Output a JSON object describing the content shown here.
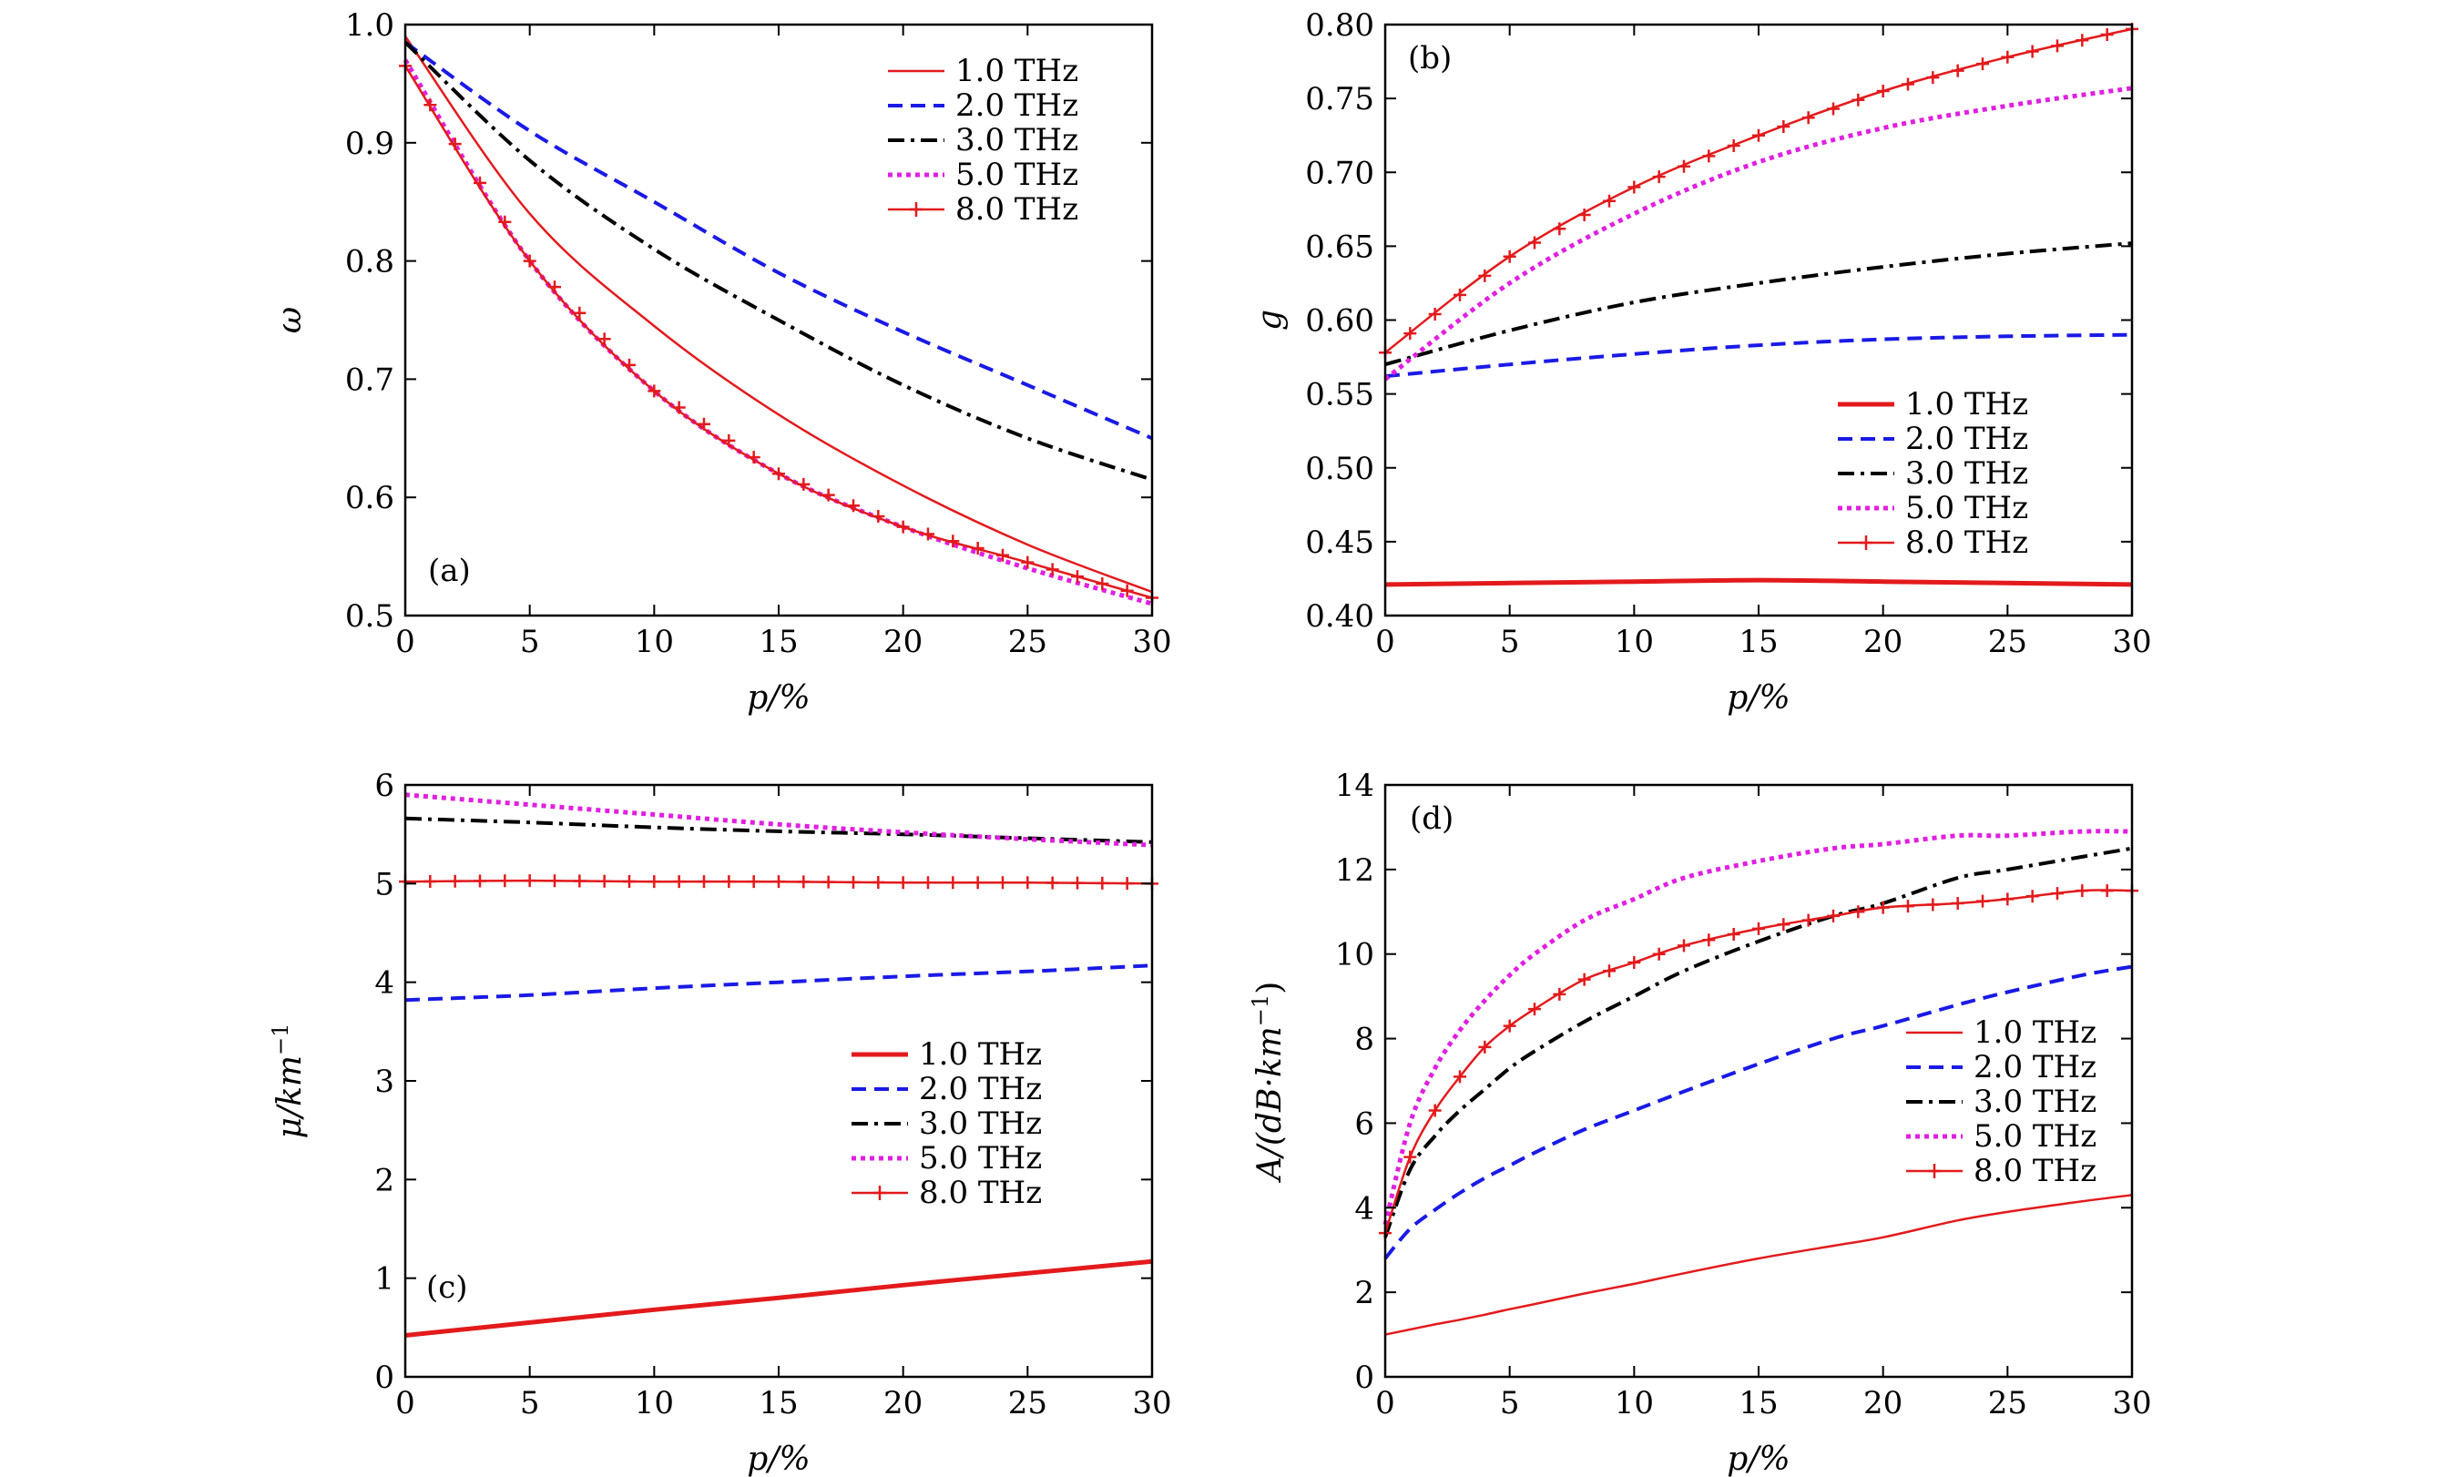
{
  "chart_data": [
    {
      "type": "line",
      "panel_label": "(a)",
      "xlabel": "p/%",
      "ylabel": "ω",
      "xlim": [
        0,
        30
      ],
      "ylim": [
        0.5,
        1.0
      ],
      "x_ticks": [
        "0",
        "5",
        "10",
        "15",
        "20",
        "25",
        "30"
      ],
      "y_ticks": [
        "0.5",
        "0.6",
        "0.7",
        "0.8",
        "0.9",
        "1.0"
      ],
      "legend_position": "top-right",
      "x": [
        0,
        5,
        10,
        15,
        20,
        25,
        30
      ],
      "series": [
        {
          "name": "1.0 THz",
          "color": "#e31a1c",
          "style": "solid",
          "values": [
            0.99,
            0.84,
            0.745,
            0.67,
            0.61,
            0.56,
            0.52
          ]
        },
        {
          "name": "2.0 THz",
          "color": "#1a1ae6",
          "style": "dashed",
          "values": [
            0.985,
            0.91,
            0.85,
            0.79,
            0.74,
            0.695,
            0.65
          ]
        },
        {
          "name": "3.0 THz",
          "color": "#000000",
          "style": "dashdot",
          "values": [
            0.985,
            0.885,
            0.81,
            0.75,
            0.695,
            0.65,
            0.615
          ]
        },
        {
          "name": "5.0 THz",
          "color": "#e020e0",
          "style": "dotted",
          "values": [
            0.97,
            0.8,
            0.69,
            0.62,
            0.575,
            0.54,
            0.51
          ]
        },
        {
          "name": "8.0 THz",
          "color": "#e31a1c",
          "style": "marker",
          "values": [
            0.965,
            0.8,
            0.69,
            0.62,
            0.575,
            0.545,
            0.515
          ]
        }
      ]
    },
    {
      "type": "line",
      "panel_label": "(b)",
      "xlabel": "p/%",
      "ylabel": "g",
      "xlim": [
        0,
        30
      ],
      "ylim": [
        0.4,
        0.8
      ],
      "x_ticks": [
        "0",
        "5",
        "10",
        "15",
        "20",
        "25",
        "30"
      ],
      "y_ticks": [
        "0.40",
        "0.45",
        "0.50",
        "0.55",
        "0.60",
        "0.65",
        "0.70",
        "0.75",
        "0.80"
      ],
      "legend_position": "bottom-right",
      "x": [
        0,
        5,
        10,
        15,
        20,
        25,
        30
      ],
      "series": [
        {
          "name": "1.0 THz",
          "color": "#e31a1c",
          "style": "thick",
          "values": [
            0.421,
            0.422,
            0.423,
            0.424,
            0.423,
            0.422,
            0.421
          ]
        },
        {
          "name": "2.0 THz",
          "color": "#1a1ae6",
          "style": "dashed",
          "values": [
            0.562,
            0.57,
            0.577,
            0.583,
            0.587,
            0.589,
            0.59
          ]
        },
        {
          "name": "3.0 THz",
          "color": "#000000",
          "style": "dashdot",
          "values": [
            0.57,
            0.593,
            0.612,
            0.625,
            0.636,
            0.645,
            0.652
          ]
        },
        {
          "name": "5.0 THz",
          "color": "#e020e0",
          "style": "dotted",
          "values": [
            0.56,
            0.625,
            0.672,
            0.707,
            0.73,
            0.745,
            0.757
          ]
        },
        {
          "name": "8.0 THz",
          "color": "#e31a1c",
          "style": "marker",
          "values": [
            0.578,
            0.643,
            0.69,
            0.725,
            0.755,
            0.778,
            0.797
          ]
        }
      ]
    },
    {
      "type": "line",
      "panel_label": "(c)",
      "xlabel": "p/%",
      "ylabel": "μ/km",
      "ylabel_sup": "−1",
      "xlim": [
        0,
        30
      ],
      "ylim": [
        0,
        6
      ],
      "x_ticks": [
        "0",
        "5",
        "10",
        "15",
        "20",
        "25",
        "30"
      ],
      "y_ticks": [
        "0",
        "1",
        "2",
        "3",
        "4",
        "5",
        "6"
      ],
      "legend_position": "center-right",
      "x": [
        0,
        5,
        10,
        15,
        20,
        25,
        30
      ],
      "series": [
        {
          "name": "1.0 THz",
          "color": "#e31a1c",
          "style": "thick",
          "values": [
            0.42,
            0.55,
            0.68,
            0.8,
            0.93,
            1.05,
            1.17
          ]
        },
        {
          "name": "2.0 THz",
          "color": "#1a1ae6",
          "style": "dashed",
          "values": [
            3.82,
            3.87,
            3.94,
            4.0,
            4.06,
            4.11,
            4.17
          ]
        },
        {
          "name": "3.0 THz",
          "color": "#000000",
          "style": "dashdot",
          "values": [
            5.66,
            5.62,
            5.57,
            5.53,
            5.5,
            5.46,
            5.42
          ]
        },
        {
          "name": "5.0 THz",
          "color": "#e020e0",
          "style": "dotted",
          "values": [
            5.9,
            5.8,
            5.7,
            5.6,
            5.52,
            5.45,
            5.39
          ]
        },
        {
          "name": "8.0 THz",
          "color": "#e31a1c",
          "style": "marker",
          "values": [
            5.02,
            5.03,
            5.02,
            5.02,
            5.01,
            5.01,
            5.0
          ]
        }
      ]
    },
    {
      "type": "line",
      "panel_label": "(d)",
      "xlabel": "p/%",
      "ylabel": "A/(dB·km",
      "ylabel_sup": "−1",
      "ylabel_end": ")",
      "xlim": [
        0,
        30
      ],
      "ylim": [
        0,
        14
      ],
      "x_ticks": [
        "0",
        "5",
        "10",
        "15",
        "20",
        "25",
        "30"
      ],
      "y_ticks": [
        "0",
        "2",
        "4",
        "6",
        "8",
        "10",
        "12",
        "14"
      ],
      "legend_position": "center-right",
      "x": [
        0,
        1,
        2,
        3,
        4,
        5,
        6,
        8,
        10,
        12,
        15,
        18,
        20,
        23,
        25,
        28,
        30
      ],
      "series": [
        {
          "name": "1.0 THz",
          "color": "#e31a1c",
          "style": "solid",
          "values": [
            1.0,
            1.12,
            1.24,
            1.35,
            1.47,
            1.6,
            1.72,
            1.97,
            2.2,
            2.45,
            2.8,
            3.1,
            3.3,
            3.7,
            3.9,
            4.15,
            4.3
          ]
        },
        {
          "name": "2.0 THz",
          "color": "#1a1ae6",
          "style": "dashed",
          "values": [
            2.8,
            3.5,
            3.95,
            4.35,
            4.7,
            5.0,
            5.3,
            5.85,
            6.3,
            6.75,
            7.4,
            8.0,
            8.3,
            8.8,
            9.1,
            9.5,
            9.7
          ]
        },
        {
          "name": "3.0 THz",
          "color": "#000000",
          "style": "dashdot",
          "values": [
            3.3,
            4.9,
            5.7,
            6.3,
            6.8,
            7.3,
            7.7,
            8.4,
            9.0,
            9.6,
            10.3,
            10.9,
            11.2,
            11.8,
            12.0,
            12.3,
            12.5
          ]
        },
        {
          "name": "5.0 THz",
          "color": "#e020e0",
          "style": "dotted",
          "values": [
            3.6,
            6.0,
            7.3,
            8.2,
            8.9,
            9.5,
            10.0,
            10.8,
            11.3,
            11.8,
            12.2,
            12.5,
            12.6,
            12.8,
            12.8,
            12.9,
            12.9
          ]
        },
        {
          "name": "8.0 THz",
          "color": "#e31a1c",
          "style": "marker",
          "values": [
            3.4,
            5.2,
            6.3,
            7.1,
            7.8,
            8.3,
            8.7,
            9.4,
            9.8,
            10.2,
            10.6,
            10.9,
            11.1,
            11.2,
            11.3,
            11.5,
            11.5
          ]
        }
      ]
    }
  ]
}
